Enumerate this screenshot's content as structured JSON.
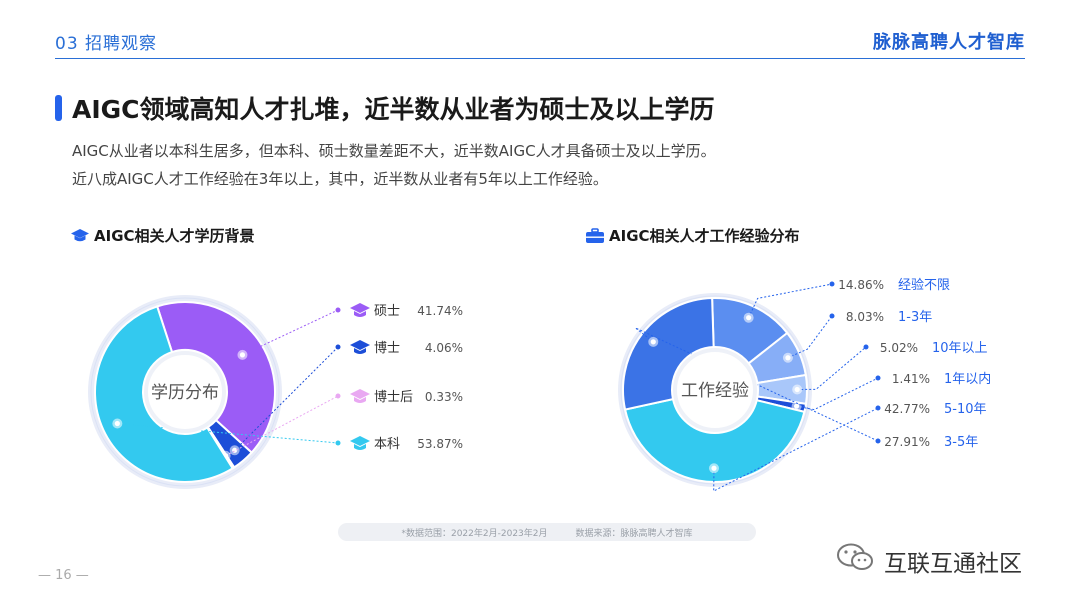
{
  "header": {
    "section": "03 招聘观察",
    "brand": "脉脉高聘人才智库"
  },
  "title": "AIGC领域高知人才扎堆，近半数从业者为硕士及以上学历",
  "description": [
    "AIGC从业者以本科生居多，但本科、硕士数量差距不大，近半数AIGC人才具备硕士及以上学历。",
    "近八成AIGC人才工作经验在3年以上，其中，近半数从业者有5年以上工作经验。"
  ],
  "sections": {
    "education": "AIGC相关人才学历背景",
    "experience": "AIGC相关人才工作经验分布"
  },
  "colors": {
    "accent": "#2563eb",
    "ring": "#e8ecf8",
    "dot": "#ffffff"
  },
  "chart_data": [
    {
      "type": "pie",
      "title": "AIGC相关人才学历背景",
      "center_label": "学历分布",
      "categories": [
        "硕士",
        "博士",
        "博士后",
        "本科"
      ],
      "values": [
        41.74,
        4.06,
        0.33,
        53.87
      ],
      "labels": [
        "41.74%",
        "4.06%",
        "0.33%",
        "53.87%"
      ],
      "colors": [
        "#9b5cf6",
        "#1d4ed8",
        "#e9a8f2",
        "#33c9ef"
      ],
      "icon": "graduation-cap-icon"
    },
    {
      "type": "pie",
      "title": "AIGC相关人才工作经验分布",
      "center_label": "工作经验",
      "categories": [
        "经验不限",
        "1-3年",
        "10年以上",
        "1年以内",
        "5-10年",
        "3-5年"
      ],
      "values": [
        14.86,
        8.03,
        5.02,
        1.41,
        42.77,
        27.91
      ],
      "labels": [
        "14.86%",
        "8.03%",
        "5.02%",
        "1.41%",
        "42.77%",
        "27.91%"
      ],
      "colors": [
        "#5b8ef0",
        "#87aef7",
        "#a9c7fa",
        "#1d4ed8",
        "#33c9ef",
        "#3b73e6"
      ],
      "icon": "briefcase-icon"
    }
  ],
  "footer": {
    "range": "*数据范围：2022年2月-2023年2月",
    "source": "数据来源：脉脉高聘人才智库"
  },
  "page": "— 16 —",
  "watermark": "互联互通社区"
}
